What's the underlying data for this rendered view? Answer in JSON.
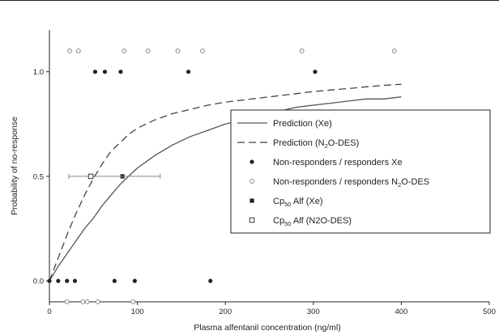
{
  "chart_data": {
    "type": "scatter",
    "title": "",
    "xlabel": "Plasma alfentanil concentration (ng/ml)",
    "ylabel": "Probability of no-response",
    "xlim": [
      0,
      500
    ],
    "ylim": [
      -0.1,
      1.2
    ],
    "x_ticks": [
      0,
      100,
      200,
      300,
      400,
      500
    ],
    "y_ticks": [
      0.0,
      0.5,
      1.0
    ],
    "x_tick_labels": [
      "0",
      "100",
      "200",
      "300",
      "400",
      "500"
    ],
    "y_tick_labels": [
      "0.0",
      "0.5",
      "1.0"
    ],
    "legend_position": "right",
    "series": [
      {
        "name": "Prediction (Xe)",
        "kind": "line",
        "style": "solid",
        "x": [
          0,
          10,
          20,
          30,
          40,
          50,
          60,
          70,
          80,
          90,
          100,
          120,
          140,
          160,
          180,
          200,
          220,
          240,
          260,
          280,
          300,
          320,
          340,
          360,
          380,
          400
        ],
        "y": [
          0.0,
          0.07,
          0.13,
          0.19,
          0.25,
          0.3,
          0.36,
          0.41,
          0.46,
          0.5,
          0.54,
          0.6,
          0.65,
          0.69,
          0.72,
          0.75,
          0.77,
          0.79,
          0.81,
          0.83,
          0.84,
          0.85,
          0.86,
          0.87,
          0.87,
          0.88
        ]
      },
      {
        "name": "Prediction (N2O-DES)",
        "kind": "line",
        "style": "dashed",
        "x": [
          0,
          10,
          20,
          30,
          40,
          50,
          60,
          70,
          80,
          90,
          100,
          120,
          140,
          160,
          180,
          200,
          220,
          240,
          260,
          280,
          300,
          320,
          340,
          360,
          380,
          400
        ],
        "y": [
          0.0,
          0.11,
          0.22,
          0.32,
          0.41,
          0.49,
          0.56,
          0.62,
          0.66,
          0.7,
          0.73,
          0.77,
          0.8,
          0.82,
          0.84,
          0.855,
          0.865,
          0.875,
          0.885,
          0.895,
          0.905,
          0.913,
          0.92,
          0.928,
          0.935,
          0.94
        ]
      },
      {
        "name": "Non-responders / responders Xe",
        "kind": "points",
        "marker": "filled-circle",
        "points": [
          [
            52,
            1.0
          ],
          [
            63,
            1.0
          ],
          [
            81,
            1.0
          ],
          [
            158,
            1.0
          ],
          [
            302,
            1.0
          ],
          [
            0,
            0.0
          ],
          [
            10,
            0.0
          ],
          [
            20,
            0.0
          ],
          [
            29,
            0.0
          ],
          [
            74,
            0.0
          ],
          [
            97,
            0.0
          ],
          [
            183,
            0.0
          ]
        ]
      },
      {
        "name": "Non-responders / responders N2O-DES",
        "kind": "points",
        "marker": "open-circle",
        "points": [
          [
            23,
            1.1
          ],
          [
            33,
            1.1
          ],
          [
            85,
            1.1
          ],
          [
            112,
            1.1
          ],
          [
            146,
            1.1
          ],
          [
            174,
            1.1
          ],
          [
            287,
            1.1
          ],
          [
            392,
            1.1
          ],
          [
            20,
            -0.1
          ],
          [
            38,
            -0.1
          ],
          [
            43,
            -0.1
          ],
          [
            55,
            -0.1
          ],
          [
            95,
            -0.1
          ]
        ]
      },
      {
        "name": "Cp50 Alf (Xe)",
        "kind": "points",
        "marker": "filled-square",
        "points": [
          [
            83,
            0.5
          ]
        ]
      },
      {
        "name": "Cp50 Alf (N2O-DES)",
        "kind": "points",
        "marker": "open-square",
        "points": [
          [
            47,
            0.5
          ]
        ],
        "x_error": [
          [
            22,
            126
          ]
        ]
      }
    ]
  },
  "legend": {
    "items": [
      {
        "main": "Prediction (Xe)",
        "sub": "",
        "rest": ""
      },
      {
        "main": "Prediction (N",
        "sub": "2",
        "rest": "O-DES)"
      },
      {
        "main": "Non-responders / responders Xe",
        "sub": "",
        "rest": ""
      },
      {
        "main": "Non-responders / responders N",
        "sub": "2",
        "rest": "O-DES"
      },
      {
        "main": "Cp",
        "sub": "50",
        "rest": " Alf (Xe)"
      },
      {
        "main": "Cp",
        "sub": "50",
        "rest": " Alf (N2O-DES)"
      }
    ]
  },
  "colors": {
    "ink": "#222222",
    "errorbar": "#888888",
    "xe_line": "#555555",
    "n2o_line": "#444444"
  }
}
